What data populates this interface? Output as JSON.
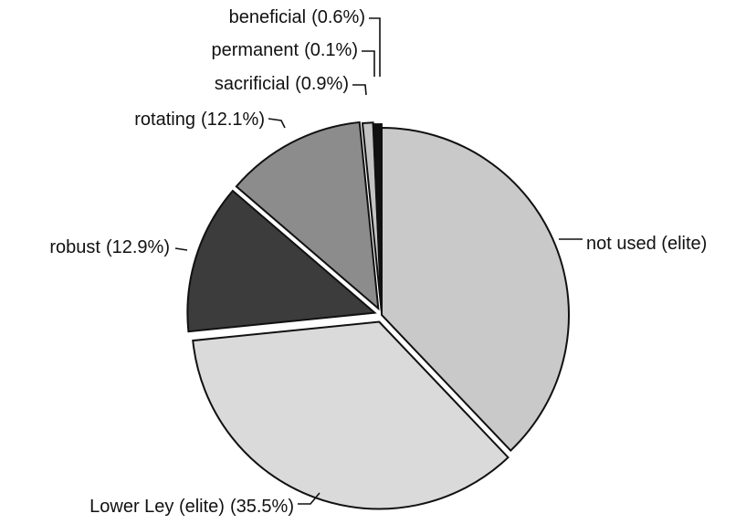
{
  "chart_data": {
    "type": "pie",
    "categories": [
      "not used (elite)",
      "Lower Ley (elite)",
      "robust",
      "rotating",
      "sacrificial",
      "permanent",
      "beneficial"
    ],
    "values": [
      37.9,
      35.5,
      12.9,
      12.1,
      0.9,
      0.1,
      0.6
    ],
    "value_labels": [
      null,
      "(35.5%)",
      "(12.9%)",
      "(12.1%)",
      "(0.9%)",
      "(0.1%)",
      "(0.6%)"
    ],
    "colors": [
      "#c9c9c9",
      "#dadada",
      "#3c3c3c",
      "#8c8c8c",
      "#c4c4c4",
      "#333333",
      "#111111"
    ]
  }
}
